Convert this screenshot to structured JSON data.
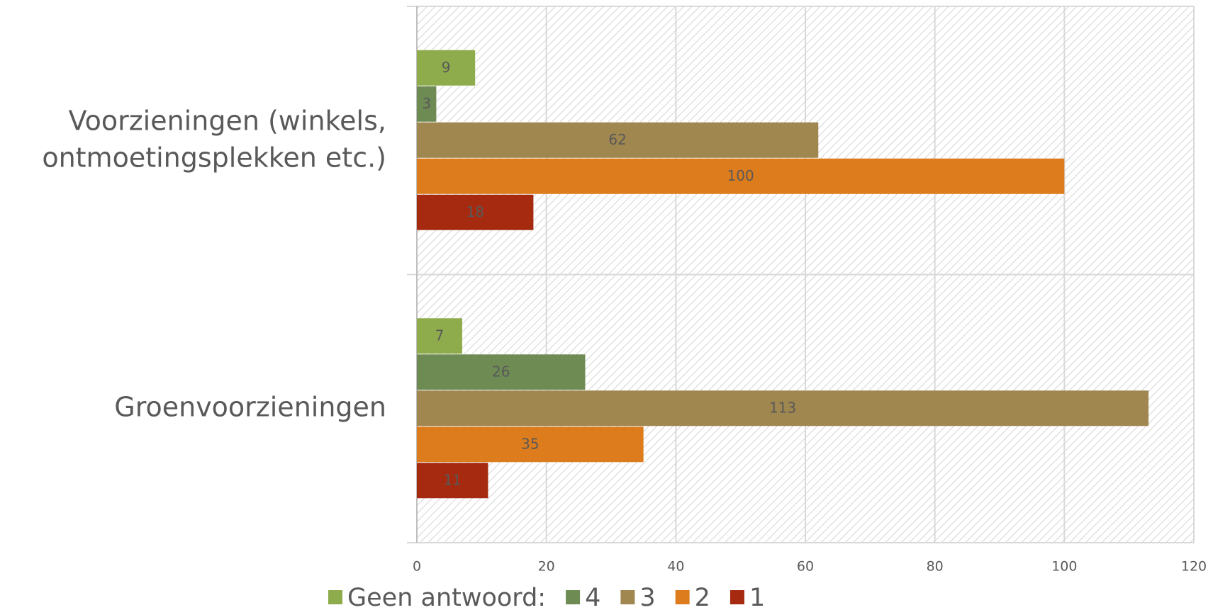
{
  "chart_data": {
    "type": "bar",
    "orientation": "horizontal",
    "categories": [
      "Voorzieningen (winkels, ontmoetingsplekken etc.)",
      "Groenvoorzieningen"
    ],
    "series": [
      {
        "name": "Geen antwoord:",
        "color": "#8fac4c",
        "values": [
          9,
          7
        ]
      },
      {
        "name": "4",
        "color": "#6e8b53",
        "values": [
          3,
          26
        ]
      },
      {
        "name": "3",
        "color": "#a0864f",
        "values": [
          62,
          113
        ]
      },
      {
        "name": "2",
        "color": "#dc7c1c",
        "values": [
          100,
          35
        ]
      },
      {
        "name": "1",
        "color": "#a52a10",
        "values": [
          18,
          11
        ]
      }
    ],
    "xlim": [
      0,
      120
    ],
    "xticks": [
      0,
      20,
      40,
      60,
      80,
      100,
      120
    ],
    "grid": true,
    "legend": "bottom"
  }
}
